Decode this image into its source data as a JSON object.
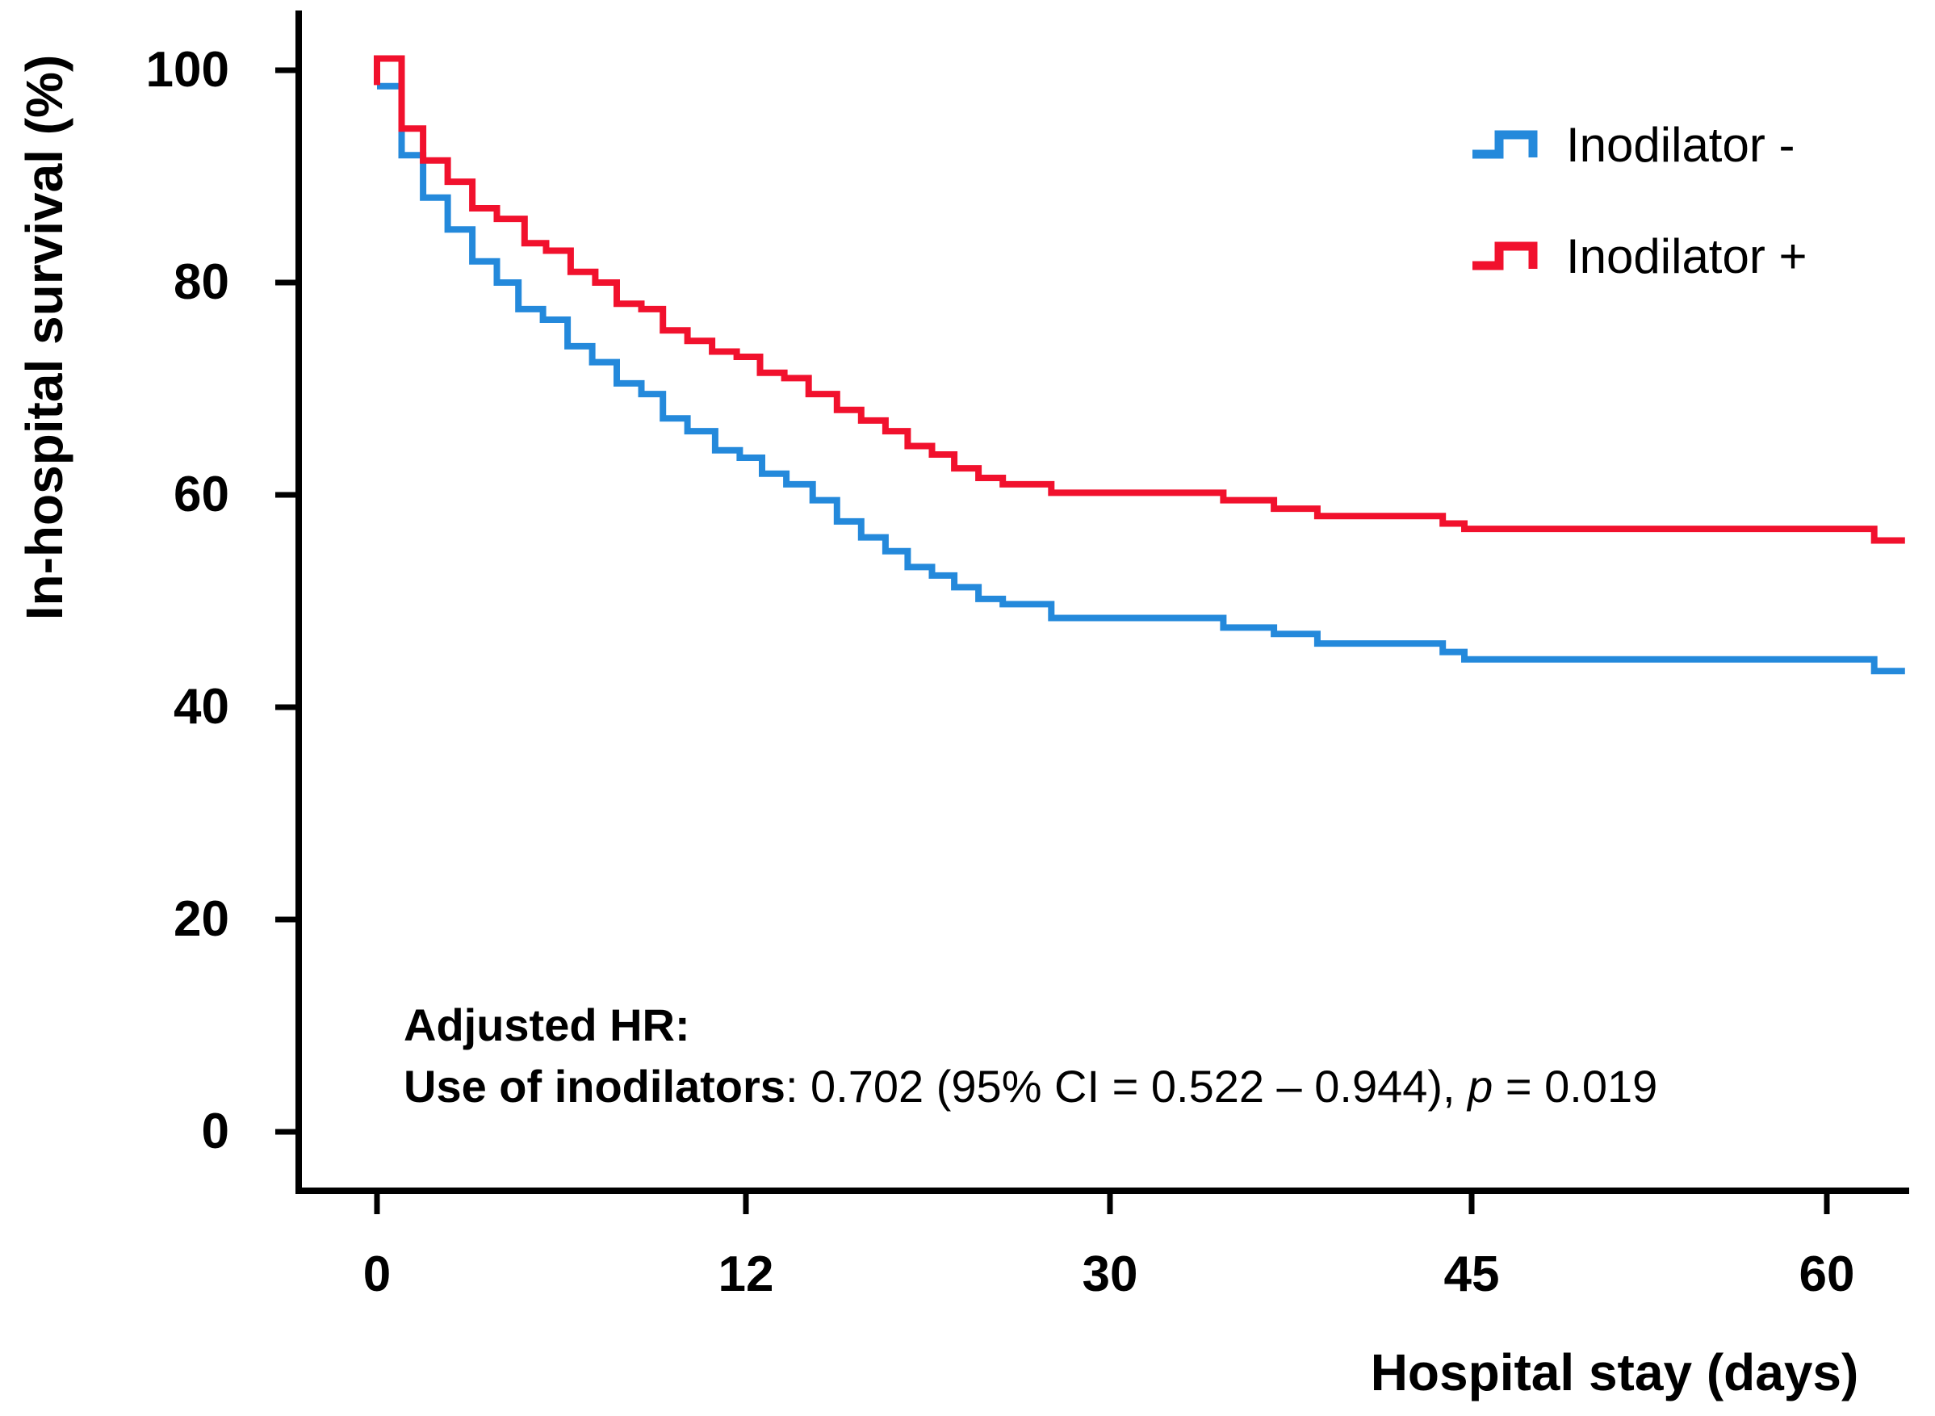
{
  "figure": {
    "background": "#ffffff"
  },
  "y_axis": {
    "title": "In-hospital survival (%)",
    "ticks": [
      {
        "value": 100,
        "label": "100"
      },
      {
        "value": 80,
        "label": "80"
      },
      {
        "value": 60,
        "label": "60"
      },
      {
        "value": 40,
        "label": "40"
      },
      {
        "value": 20,
        "label": "20"
      },
      {
        "value": 0,
        "label": "0"
      }
    ]
  },
  "x_axis": {
    "title": "Hospital stay (days)",
    "ticks": [
      {
        "value": 0,
        "label": "0"
      },
      {
        "value": 12,
        "label": "12"
      },
      {
        "value": 30,
        "label": "30"
      },
      {
        "value": 45,
        "label": "45"
      },
      {
        "value": 60,
        "label": "60"
      }
    ]
  },
  "legend": {
    "items": [
      {
        "label": "Inodilator -",
        "color": "#2489db"
      },
      {
        "label": "Inodilator +",
        "color": "#f1112d"
      }
    ]
  },
  "annotation": {
    "line1": "Adjusted HR:",
    "line2_bold": "Use of inodilators",
    "line2_normal": ": 0.702 (95% CI = 0.522 – 0.944), ",
    "line2_italic": "p",
    "line2_suffix": " = 0.019"
  },
  "chart_data": {
    "type": "line",
    "subtype": "kaplan-meier-step",
    "title": "",
    "xlabel": "Hospital stay (days)",
    "ylabel": "In-hospital survival (%)",
    "x_ticks": [
      0,
      12,
      30,
      45,
      60
    ],
    "y_ticks": [
      0,
      20,
      40,
      60,
      80,
      100
    ],
    "ylim": [
      0,
      105
    ],
    "xlim_days": [
      0,
      63.3
    ],
    "grid": false,
    "legend_position": "upper right",
    "x_axis_note": "tick marks equally spaced although day intervals differ (0,12,30,45,60)",
    "end_day": 63.3,
    "hazard_ratio": {
      "adjusted_hr": 0.702,
      "ci_95": [
        0.522,
        0.944
      ],
      "p_value": 0.019
    },
    "series": [
      {
        "name": "Inodilator -",
        "color": "#2489db",
        "points": [
          [
            0,
            98.5
          ],
          [
            0.8,
            92
          ],
          [
            1.5,
            88
          ],
          [
            2.3,
            85
          ],
          [
            3.1,
            82
          ],
          [
            3.9,
            80
          ],
          [
            4.6,
            77.5
          ],
          [
            5.4,
            76.5
          ],
          [
            6.2,
            74
          ],
          [
            7.0,
            72.5
          ],
          [
            7.8,
            70.5
          ],
          [
            8.6,
            69.5
          ],
          [
            9.3,
            67.2
          ],
          [
            10.1,
            66
          ],
          [
            11.0,
            64.2
          ],
          [
            11.8,
            63.5
          ],
          [
            12.8,
            62
          ],
          [
            14.0,
            61
          ],
          [
            15.3,
            59.5
          ],
          [
            16.5,
            57.5
          ],
          [
            17.7,
            56
          ],
          [
            18.9,
            54.7
          ],
          [
            20,
            53.2
          ],
          [
            21.2,
            52.4
          ],
          [
            22.3,
            51.3
          ],
          [
            23.5,
            50.2
          ],
          [
            24.7,
            49.7
          ],
          [
            27.1,
            48.4
          ],
          [
            34.7,
            47.5
          ],
          [
            36.8,
            46.9
          ],
          [
            38.6,
            46
          ],
          [
            43.8,
            45.2
          ],
          [
            44.7,
            44.5
          ],
          [
            62,
            43.4
          ]
        ]
      },
      {
        "name": "Inodilator +",
        "color": "#f1112d",
        "points": [
          [
            0,
            98.6
          ],
          [
            0,
            101.1
          ],
          [
            0.8,
            94.5
          ],
          [
            1.5,
            91.5
          ],
          [
            2.3,
            89.5
          ],
          [
            3.1,
            87
          ],
          [
            3.9,
            86
          ],
          [
            4.8,
            83.7
          ],
          [
            5.5,
            83
          ],
          [
            6.3,
            81
          ],
          [
            7.1,
            80
          ],
          [
            7.8,
            78
          ],
          [
            8.6,
            77.5
          ],
          [
            9.3,
            75.5
          ],
          [
            10.1,
            74.5
          ],
          [
            10.9,
            73.5
          ],
          [
            11.7,
            73
          ],
          [
            12.7,
            71.5
          ],
          [
            13.9,
            71
          ],
          [
            15.1,
            69.5
          ],
          [
            16.5,
            68
          ],
          [
            17.7,
            67
          ],
          [
            18.9,
            66
          ],
          [
            20,
            64.6
          ],
          [
            21.2,
            63.8
          ],
          [
            22.3,
            62.5
          ],
          [
            23.5,
            61.6
          ],
          [
            24.7,
            61
          ],
          [
            27.1,
            60.2
          ],
          [
            34.7,
            59.5
          ],
          [
            36.8,
            58.7
          ],
          [
            38.6,
            58
          ],
          [
            43.8,
            57.3
          ],
          [
            44.7,
            56.8
          ],
          [
            62,
            55.7
          ]
        ]
      }
    ]
  }
}
